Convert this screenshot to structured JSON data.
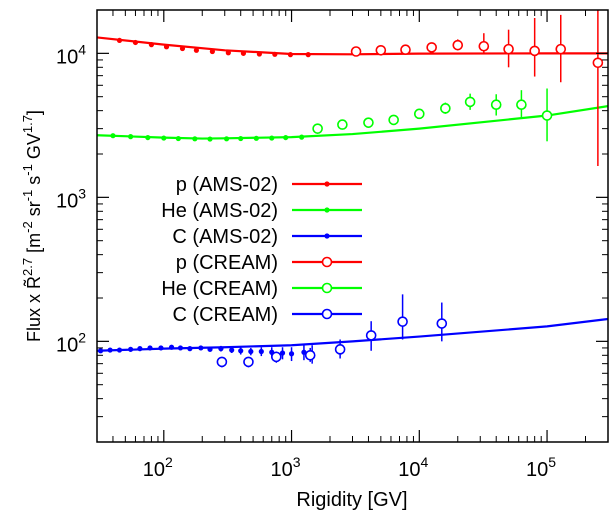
{
  "chart_data": {
    "type": "scatter",
    "xlabel": "Rigidity [GV]",
    "ylabel": "Flux x R̃",
    "ylabel_parts": {
      "pre": "Flux x R̃",
      "sup1": "2.7",
      "unit_open": " [m",
      "sup2": "-2",
      "sr": " sr",
      "sup3": "-1",
      "s": " s",
      "sup4": "-1",
      "gv": " GV",
      "sup5": "1.7",
      "close": "]"
    },
    "x_scale": "log",
    "y_scale": "log",
    "xlim": [
      30,
      300000
    ],
    "ylim": [
      20,
      20000
    ],
    "x_ticks": [
      {
        "base": "10",
        "exp": "2",
        "value": 100
      },
      {
        "base": "10",
        "exp": "3",
        "value": 1000
      },
      {
        "base": "10",
        "exp": "4",
        "value": 10000
      },
      {
        "base": "10",
        "exp": "5",
        "value": 100000
      }
    ],
    "y_ticks": [
      {
        "base": "10",
        "exp": "2",
        "value": 100
      },
      {
        "base": "10",
        "exp": "3",
        "value": 1000
      },
      {
        "base": "10",
        "exp": "4",
        "value": 10000
      }
    ],
    "grid": false,
    "legend_position": "left",
    "legend": [
      {
        "label": "p (AMS-02)",
        "color": "#ff0000",
        "marker": "dot"
      },
      {
        "label": "He (AMS-02)",
        "color": "#00ff00",
        "marker": "dot"
      },
      {
        "label": "C (AMS-02)",
        "color": "#0000ff",
        "marker": "dot"
      },
      {
        "label": "p (CREAM)",
        "color": "#ff0000",
        "marker": "circle"
      },
      {
        "label": "He (CREAM)",
        "color": "#00ff00",
        "marker": "circle"
      },
      {
        "label": "C (CREAM)",
        "color": "#0000ff",
        "marker": "circle"
      }
    ],
    "models": [
      {
        "species": "p",
        "color": "#ff0000",
        "x": [
          30,
          100,
          300,
          1000,
          3000,
          10000,
          100000,
          300000
        ],
        "y": [
          12900,
          11500,
          10500,
          9900,
          9850,
          9950,
          10000,
          10000
        ]
      },
      {
        "species": "He",
        "color": "#00ff00",
        "x": [
          30,
          100,
          200,
          300,
          1000,
          3000,
          10000,
          100000,
          300000
        ],
        "y": [
          2700,
          2600,
          2560,
          2570,
          2620,
          2750,
          3000,
          3700,
          4300
        ]
      },
      {
        "species": "C",
        "color": "#0000ff",
        "x": [
          30,
          100,
          300,
          1000,
          3000,
          10000,
          100000,
          300000
        ],
        "y": [
          86,
          89,
          91,
          94,
          100,
          108,
          127,
          143
        ]
      }
    ],
    "ams_points": [
      {
        "species": "p",
        "color": "#ff0000",
        "x": [
          45,
          60,
          80,
          105,
          140,
          180,
          240,
          320,
          420,
          560,
          740,
          980,
          1350
        ],
        "y": [
          12300,
          11900,
          11500,
          11100,
          10800,
          10500,
          10300,
          10100,
          10000,
          9900,
          9850,
          9800,
          9800
        ]
      },
      {
        "species": "He",
        "color": "#00ff00",
        "x": [
          40,
          55,
          75,
          100,
          130,
          175,
          230,
          310,
          400,
          530,
          700,
          900,
          1200
        ],
        "y": [
          2680,
          2640,
          2600,
          2580,
          2560,
          2550,
          2540,
          2550,
          2560,
          2570,
          2580,
          2600,
          2620
        ]
      },
      {
        "species": "C",
        "color": "#0000ff",
        "x": [
          32,
          38,
          45,
          55,
          65,
          78,
          95,
          115,
          135,
          160,
          195,
          230,
          280,
          340,
          400,
          480,
          580,
          700,
          850,
          1000,
          1250,
          1450
        ],
        "y": [
          86,
          87,
          87,
          88,
          89,
          90,
          90,
          91,
          90,
          89,
          90,
          88,
          89,
          87,
          86,
          85,
          85,
          84,
          83,
          82,
          84,
          82
        ],
        "err": [
          2,
          2,
          2,
          2,
          2,
          2,
          2,
          2,
          3,
          3,
          3,
          3,
          4,
          4,
          5,
          5,
          6,
          7,
          8,
          9,
          10,
          12
        ]
      }
    ],
    "cream_points": [
      {
        "species": "p",
        "color": "#ff0000",
        "x": [
          3200,
          5000,
          7800,
          12500,
          20000,
          32000,
          50000,
          80000,
          128000,
          250000
        ],
        "y": [
          10300,
          10500,
          10600,
          11000,
          11400,
          11200,
          10700,
          10400,
          10700,
          8600
        ],
        "lo": [
          10000,
          10100,
          10100,
          10400,
          10500,
          10000,
          8000,
          6900,
          6300,
          1650
        ],
        "hi": [
          10600,
          11000,
          11300,
          11800,
          12500,
          13800,
          14600,
          17600,
          18500,
          20000
        ]
      },
      {
        "species": "He",
        "color": "#00ff00",
        "x": [
          1600,
          2500,
          4000,
          6300,
          10000,
          16000,
          25000,
          40000,
          63000,
          100000
        ],
        "y": [
          3000,
          3200,
          3300,
          3450,
          3800,
          4150,
          4600,
          4400,
          4400,
          3700
        ],
        "lo": [
          2850,
          3050,
          3150,
          3250,
          3550,
          3800,
          4050,
          3700,
          3500,
          2450
        ],
        "hi": [
          3150,
          3380,
          3480,
          3700,
          4100,
          4550,
          5250,
          5200,
          5550,
          5700
        ]
      },
      {
        "species": "C",
        "color": "#0000ff",
        "x": [
          285,
          460,
          760,
          1400,
          2400,
          4200,
          7400,
          15000
        ],
        "y": [
          72,
          72,
          78,
          80,
          88,
          110,
          137,
          133
        ],
        "lo": [
          66,
          66,
          71,
          72,
          76,
          86,
          103,
          100
        ],
        "hi": [
          78,
          78,
          85,
          90,
          103,
          138,
          212,
          186
        ]
      }
    ]
  }
}
